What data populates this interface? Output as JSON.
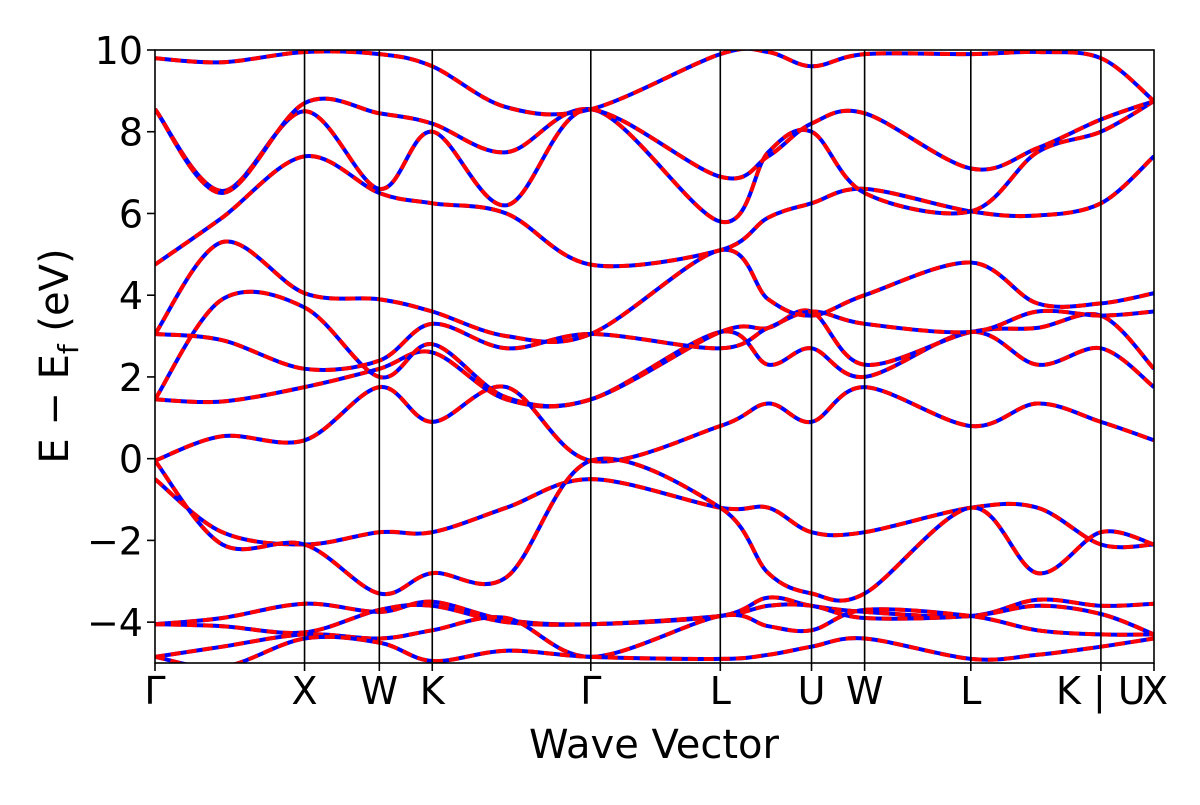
{
  "chart_data": {
    "type": "line",
    "xlabel": "Wave Vector",
    "ylabel": "E − E",
    "ylabel_sub": "f",
    "ylabel_unit": " (eV)",
    "ylim": [
      -5,
      10
    ],
    "yticks": [
      {
        "value": 10,
        "label": "10"
      },
      {
        "value": 8,
        "label": "8"
      },
      {
        "value": 6,
        "label": "6"
      },
      {
        "value": 4,
        "label": "4"
      },
      {
        "value": 2,
        "label": "2"
      },
      {
        "value": 0,
        "label": "0"
      },
      {
        "value": -2,
        "label": "−2"
      },
      {
        "value": -4,
        "label": "−4"
      }
    ],
    "kpath": [
      {
        "label": "Γ",
        "x": 0
      },
      {
        "label": "X",
        "x": 1.0
      },
      {
        "label": "W",
        "x": 1.5
      },
      {
        "label": "K",
        "x": 1.854
      },
      {
        "label": "Γ",
        "x": 2.914
      },
      {
        "label": "L",
        "x": 3.78
      },
      {
        "label": "U",
        "x": 4.39
      },
      {
        "label": "W",
        "x": 4.745
      },
      {
        "label": "L",
        "x": 5.455
      },
      {
        "label": "K | U",
        "x": 6.325
      },
      {
        "label": "X",
        "x": 6.68
      }
    ],
    "grid": false,
    "colors": {
      "solid": "#ff0000",
      "dashed": "#0000ff",
      "kline": "#000000"
    },
    "series": [
      {
        "values": [
          -0.5,
          -1.8,
          -2.1,
          -1.8,
          -1.8,
          -1.2,
          -0.5,
          -1.2,
          -1.2,
          -1.8,
          -1.8,
          -1.2,
          -1.2,
          -2.1,
          -2.1
        ]
      },
      {
        "values": [
          -0.05,
          0.55,
          0.45,
          1.75,
          0.9,
          1.75,
          -0.05,
          0.8,
          1.35,
          0.9,
          1.75,
          0.8,
          1.35,
          0.9,
          0.45
        ]
      },
      {
        "values": [
          -0.05,
          -2.1,
          -2.1,
          -3.3,
          -2.8,
          -2.9,
          -0.05,
          -1.2,
          -2.8,
          -3.3,
          -3.3,
          -1.2,
          -2.8,
          -1.8,
          -2.1
        ]
      },
      {
        "values": [
          1.45,
          1.4,
          1.75,
          2.2,
          2.6,
          1.45,
          1.45,
          3.1,
          2.3,
          2.7,
          2.0,
          3.1,
          2.3,
          2.7,
          1.75
        ]
      },
      {
        "values": [
          1.45,
          3.9,
          3.7,
          2.0,
          2.8,
          1.5,
          1.45,
          3.1,
          3.2,
          3.6,
          2.3,
          3.1,
          3.2,
          3.5,
          2.2
        ]
      },
      {
        "values": [
          3.05,
          2.9,
          2.2,
          2.4,
          3.3,
          2.7,
          3.05,
          2.7,
          3.2,
          3.6,
          3.3,
          3.1,
          3.6,
          3.5,
          3.6
        ]
      },
      {
        "values": [
          3.05,
          5.3,
          4.05,
          3.9,
          3.6,
          3.0,
          3.05,
          5.1,
          3.9,
          3.5,
          4.0,
          4.8,
          3.8,
          3.8,
          4.05
        ]
      },
      {
        "values": [
          4.75,
          5.9,
          7.4,
          6.5,
          6.25,
          6.0,
          4.75,
          5.1,
          5.9,
          6.25,
          6.6,
          6.05,
          5.95,
          6.25,
          7.4
        ]
      },
      {
        "values": [
          8.55,
          6.55,
          8.5,
          6.6,
          8.0,
          6.2,
          8.55,
          5.8,
          7.5,
          8.0,
          6.5,
          6.05,
          7.5,
          8.0,
          8.75
        ]
      },
      {
        "values": [
          8.55,
          6.5,
          8.7,
          8.45,
          8.2,
          7.5,
          8.55,
          6.9,
          7.4,
          8.2,
          8.45,
          7.1,
          7.6,
          8.3,
          8.75
        ]
      },
      {
        "values": [
          -4.05,
          -3.9,
          -3.55,
          -3.75,
          -3.5,
          -3.95,
          -4.05,
          -3.85,
          -3.4,
          -3.6,
          -3.75,
          -3.85,
          -3.45,
          -3.6,
          -3.55
        ]
      },
      {
        "values": [
          -4.05,
          -4.1,
          -4.25,
          -3.7,
          -3.6,
          -4.0,
          -4.05,
          -3.85,
          -3.6,
          -3.6,
          -3.9,
          -3.85,
          -3.6,
          -3.8,
          -4.3
        ]
      },
      {
        "values": [
          -4.85,
          -4.6,
          -4.3,
          -4.4,
          -4.2,
          -3.9,
          -4.85,
          -3.85,
          -4.1,
          -4.2,
          -3.7,
          -3.85,
          -4.2,
          -4.3,
          -4.3
        ]
      },
      {
        "values": [
          -4.85,
          -5.1,
          -4.4,
          -4.5,
          -4.95,
          -4.7,
          -4.85,
          -4.9,
          -4.8,
          -4.6,
          -4.4,
          -4.9,
          -4.8,
          -4.6,
          -4.4
        ]
      },
      {
        "values": [
          9.8,
          9.7,
          9.95,
          9.9,
          9.6,
          8.6,
          8.55,
          9.9,
          9.95,
          9.6,
          9.9,
          9.9,
          9.95,
          9.8,
          8.75
        ]
      }
    ],
    "series_x": [
      0,
      0.45,
      1.0,
      1.5,
      1.854,
      2.35,
      2.914,
      3.78,
      4.1,
      4.39,
      4.745,
      5.455,
      5.9,
      6.325,
      6.68
    ]
  }
}
